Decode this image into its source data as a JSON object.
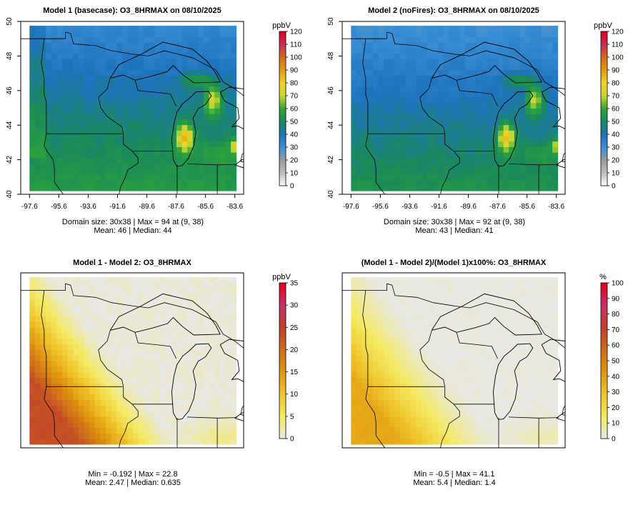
{
  "chart_data": [
    {
      "type": "heatmap",
      "title": "Model 1 (basecase): O3_8HRMAX on 08/10/2025",
      "variable": "O3_8HRMAX",
      "date": "08/10/2025",
      "scale": "ppb",
      "field": "base",
      "units": "ppbV",
      "colorbar": {
        "min": 0,
        "max": 120,
        "ticks": [
          "0",
          "10",
          "20",
          "30",
          "40",
          "50",
          "60",
          "70",
          "80",
          "90",
          "100",
          "110",
          "120"
        ]
      },
      "xticks": [
        "-97.6",
        "-95.6",
        "-93.6",
        "-91.6",
        "-89.6",
        "-87.6",
        "-85.6",
        "-83.6"
      ],
      "yticks": [
        "40",
        "42",
        "44",
        "46",
        "48",
        "50"
      ],
      "xlim": [
        -98.2,
        -83.0
      ],
      "ylim": [
        40,
        50
      ],
      "grid": [
        30,
        38
      ],
      "stats_line1": "Domain size: 30x38 | Max = 94 at (9, 38)",
      "stats_line2": "Mean: 46 |  Median: 44",
      "domain_size": "30x38",
      "max": 94,
      "max_at": "(9, 38)",
      "mean": 46,
      "median": 44
    },
    {
      "type": "heatmap",
      "title": "Model 2 (noFires): O3_8HRMAX on 08/10/2025",
      "variable": "O3_8HRMAX",
      "date": "08/10/2025",
      "scale": "ppb",
      "field": "nofire",
      "units": "ppbV",
      "colorbar": {
        "min": 0,
        "max": 120,
        "ticks": [
          "0",
          "10",
          "20",
          "30",
          "40",
          "50",
          "60",
          "70",
          "80",
          "90",
          "100",
          "110",
          "120"
        ]
      },
      "xticks": [
        "-97.6",
        "-95.6",
        "-93.6",
        "-91.6",
        "-89.6",
        "-87.6",
        "-85.6",
        "-83.6"
      ],
      "yticks": [
        "40",
        "42",
        "44",
        "46",
        "48",
        "50"
      ],
      "xlim": [
        -98.2,
        -83.0
      ],
      "ylim": [
        40,
        50
      ],
      "grid": [
        30,
        38
      ],
      "stats_line1": "Domain size: 30x38 | Max = 92 at (9, 38)",
      "stats_line2": "Mean: 43 |  Median: 41",
      "domain_size": "30x38",
      "max": 92,
      "max_at": "(9, 38)",
      "mean": 43,
      "median": 41
    },
    {
      "type": "heatmap",
      "title": "Model 1 - Model 2: O3_8HRMAX",
      "variable": "O3_8HRMAX",
      "scale": "diff",
      "field": "diff",
      "units": "ppbV",
      "colorbar": {
        "min": 0,
        "max": 35,
        "ticks": [
          "0",
          "5",
          "10",
          "15",
          "20",
          "25",
          "30",
          "35"
        ]
      },
      "xlim": [
        -98.2,
        -83.0
      ],
      "ylim": [
        40,
        50
      ],
      "stats_line1": "Min = -0.192 | Max = 22.8",
      "stats_line2": "Mean: 2.47 |  Median: 0.635",
      "min": -0.192,
      "max": 22.8,
      "mean": 2.47,
      "median": 0.635
    },
    {
      "type": "heatmap",
      "title": "(Model 1 - Model 2)/(Model 1)x100%: O3_8HRMAX",
      "variable": "O3_8HRMAX",
      "scale": "pct",
      "field": "pct",
      "units": "%",
      "colorbar": {
        "min": 0,
        "max": 100,
        "ticks": [
          "0",
          "10",
          "20",
          "30",
          "40",
          "50",
          "60",
          "70",
          "80",
          "90",
          "100"
        ]
      },
      "xlim": [
        -98.2,
        -83.0
      ],
      "ylim": [
        40,
        50
      ],
      "stats_line1": "Min = -0.5 | Max = 41.1",
      "stats_line2": "Mean: 5.4 |  Median: 1.4",
      "min": -0.5,
      "max": 41.1,
      "mean": 5.4,
      "median": 1.4
    }
  ],
  "colors": {
    "ppb": [
      "#ffffff",
      "#bdbdbd",
      "#9a9a9a",
      "#3a8fd6",
      "#1e73bd",
      "#1a8a5a",
      "#2ca33a",
      "#c9d62a",
      "#f0d22a",
      "#e39b12",
      "#d46a1a",
      "#c2305a",
      "#e8001a"
    ],
    "diff": [
      "#e8e8e8",
      "#f4ea62",
      "#f0c42a",
      "#e0960e",
      "#cf6c1a",
      "#c0402a",
      "#c6306a",
      "#e8001a"
    ]
  }
}
